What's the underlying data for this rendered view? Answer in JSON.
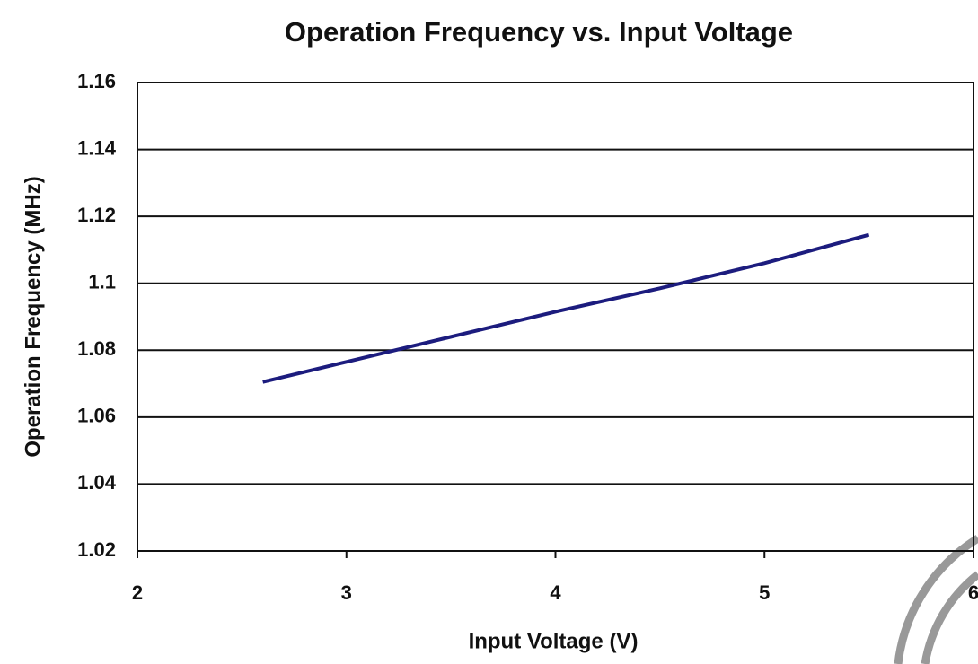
{
  "chart_data": {
    "type": "line",
    "title": "Operation Frequency vs. Input Voltage",
    "x_label": "Input Voltage (V)",
    "y_label": "Operation Frequency (MHz)",
    "x": [
      2.6,
      3,
      3.5,
      4,
      4.5,
      5,
      5.5
    ],
    "series": [
      {
        "color": "#1c1c7e",
        "values": [
          1.0705,
          1.0765,
          1.084,
          1.0915,
          1.0985,
          1.106,
          1.1145
        ]
      }
    ],
    "xlim": [
      2,
      6
    ],
    "xticks": [
      2,
      3,
      4,
      5,
      6
    ],
    "ylim": [
      1.02,
      1.16
    ],
    "yticks": [
      1.02,
      1.04,
      1.06,
      1.08,
      1.1,
      1.12,
      1.14,
      1.16
    ],
    "grid": true
  }
}
